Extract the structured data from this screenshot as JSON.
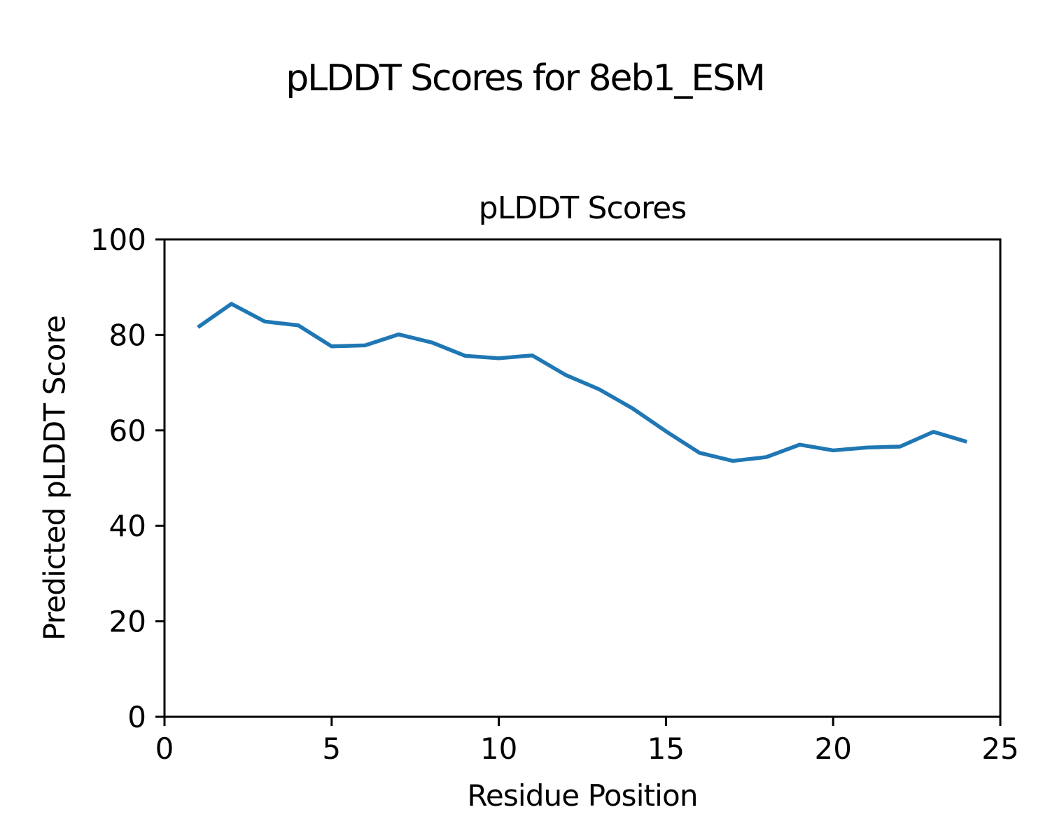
{
  "figure": {
    "suptitle": "pLDDT Scores for 8eb1_ESM",
    "background_color": "#ffffff",
    "axis_color": "#000000"
  },
  "chart_data": {
    "type": "line",
    "title": "pLDDT Scores",
    "xlabel": "Residue Position",
    "ylabel": "Predicted pLDDT Score",
    "x": [
      1,
      2,
      3,
      4,
      5,
      6,
      7,
      8,
      9,
      10,
      11,
      12,
      13,
      14,
      15,
      16,
      17,
      18,
      19,
      20,
      21,
      22,
      23,
      24
    ],
    "y": [
      81.6,
      86.5,
      82.8,
      82.0,
      77.6,
      77.8,
      80.1,
      78.4,
      75.6,
      75.1,
      75.7,
      71.6,
      68.6,
      64.6,
      59.8,
      55.3,
      53.6,
      54.4,
      57.0,
      55.8,
      56.4,
      56.6,
      59.7,
      57.6
    ],
    "xlim": [
      0,
      25
    ],
    "ylim": [
      0,
      100
    ],
    "xticks": [
      0,
      5,
      10,
      15,
      20,
      25
    ],
    "yticks": [
      0,
      20,
      40,
      60,
      80,
      100
    ],
    "line_color": "#1f77b4",
    "line_width": 5.5,
    "grid": false,
    "legend": null
  }
}
